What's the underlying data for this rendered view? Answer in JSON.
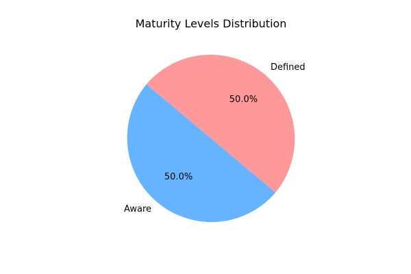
{
  "chart_data": {
    "type": "pie",
    "title": "Maturity Levels Distribution",
    "slices": [
      {
        "label": "Aware",
        "value": 50.0,
        "display": "50.0%",
        "color": "#66b3ff"
      },
      {
        "label": "Defined",
        "value": 50.0,
        "display": "50.0%",
        "color": "#ff9999"
      }
    ],
    "start_angle_deg": 140,
    "direction": "counterclockwise",
    "legend": "none"
  }
}
